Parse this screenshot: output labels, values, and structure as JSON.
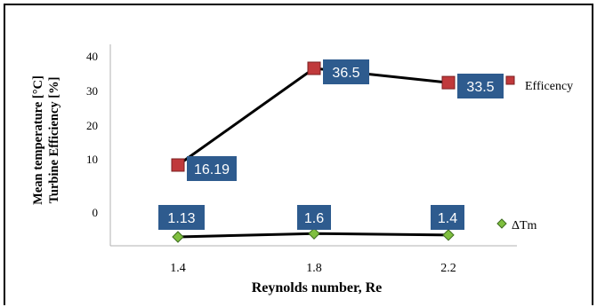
{
  "chart_data": {
    "type": "line",
    "x": [
      "1.4",
      "1.8",
      "2.2"
    ],
    "xlabel": "Reynolds number, Re",
    "ylabel_lines": [
      "Mean temperature [°C]",
      "Turbine  Efficiency [%]"
    ],
    "yticks": [
      "40",
      "30",
      "20",
      "10",
      "0"
    ],
    "series": [
      {
        "name": "Efficency",
        "values": [
          16.19,
          36.5,
          33.5
        ],
        "labels": [
          "16.19",
          "36.5",
          "33.5"
        ],
        "marker": "square",
        "color": "#c0393b"
      },
      {
        "name": "ΔTm",
        "values": [
          1.13,
          1.6,
          1.4
        ],
        "labels": [
          "1.13",
          "1.6",
          "1.4"
        ],
        "marker": "diamond",
        "color": "#7fbf3f"
      }
    ],
    "legend_placement": "right",
    "grid": false,
    "label_box_color": "#2e5b8e"
  }
}
